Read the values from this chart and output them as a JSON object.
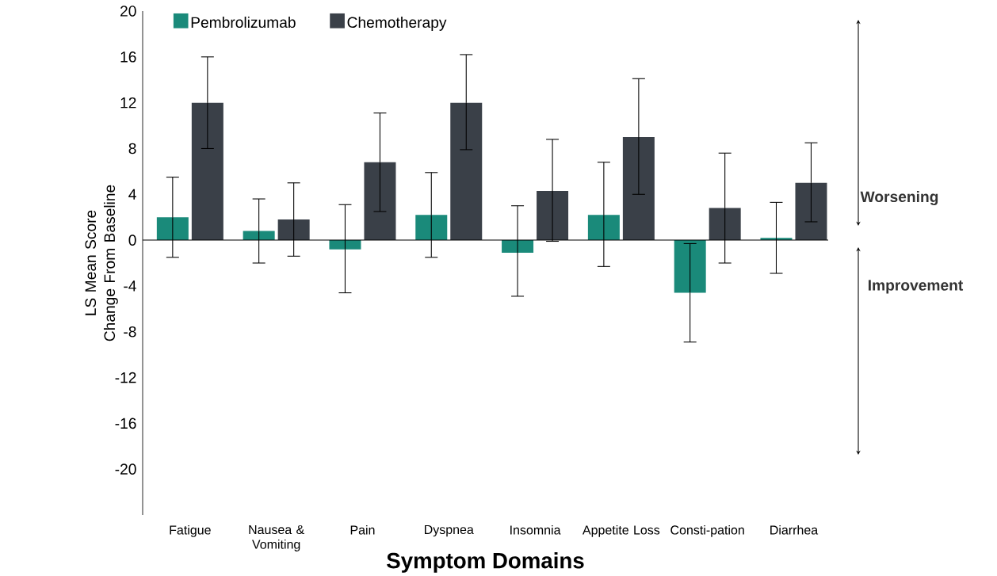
{
  "chart_data": {
    "type": "bar",
    "xlabel": "Symptom Domains",
    "ylabel": "LS Mean Score Change From Baseline",
    "categories": [
      "Fatigue",
      "Nausea & Vomiting",
      "Pain",
      "Dyspnea",
      "Insomnia",
      "Appetite Loss",
      "Consti-pation",
      "Diarrhea"
    ],
    "series": [
      {
        "name": "Pembrolizumab",
        "color": "#1a8a7a",
        "values": [
          2,
          0.8,
          -0.8,
          2.2,
          -1.1,
          2.2,
          -4.6,
          0.2
        ],
        "errors": [
          [
            -1.5,
            5.5
          ],
          [
            -2,
            3.6
          ],
          [
            -4.6,
            3.1
          ],
          [
            -1.5,
            5.9
          ],
          [
            -4.9,
            3.0
          ],
          [
            -2.3,
            6.8
          ],
          [
            -8.9,
            -0.3
          ],
          [
            -2.9,
            3.3
          ]
        ]
      },
      {
        "name": "Chemotherapy",
        "color": "#3a4048",
        "values": [
          12,
          1.8,
          6.8,
          12,
          4.3,
          9,
          2.8,
          5.0
        ],
        "errors": [
          [
            8,
            16
          ],
          [
            -1.4,
            5.0
          ],
          [
            2.5,
            11.1
          ],
          [
            7.9,
            16.2
          ],
          [
            -0.1,
            8.8
          ],
          [
            4.0,
            14.1
          ],
          [
            -2,
            7.6
          ],
          [
            1.6,
            8.5
          ]
        ]
      }
    ],
    "ylim": [
      -24,
      20
    ],
    "yticks": [
      -20,
      -16,
      -12,
      -8,
      -4,
      0,
      4,
      8,
      12,
      16,
      20
    ],
    "annotations": [
      "Worsening",
      "Improvement"
    ],
    "ref_lines": [
      {
        "axis": "y",
        "value": 0,
        "color": "#000000"
      }
    ],
    "legend": "top",
    "grid": false
  }
}
